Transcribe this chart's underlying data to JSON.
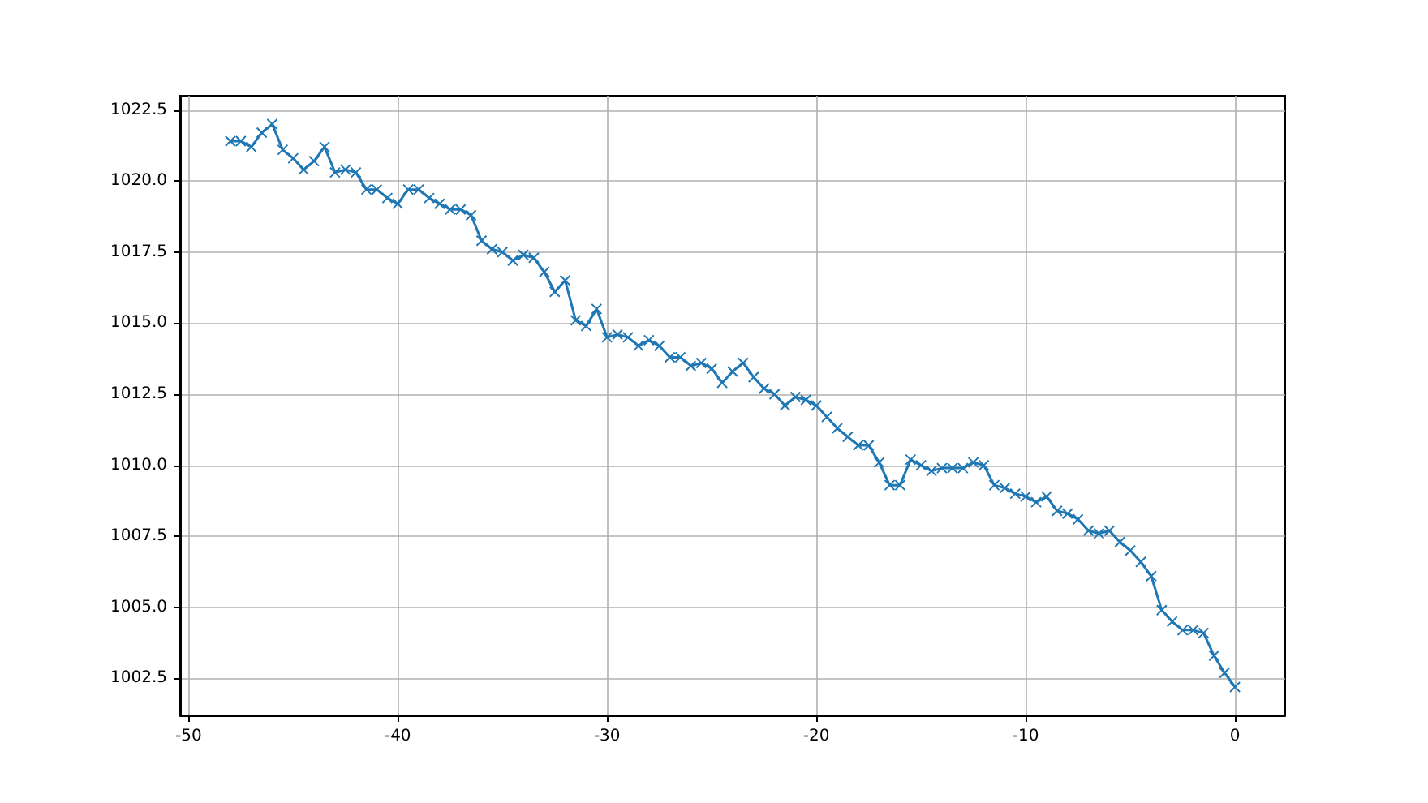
{
  "chart_data": {
    "type": "line",
    "color": "#1f77b4",
    "marker": "cross",
    "grid": true,
    "x": [
      -48,
      -47.5,
      -47,
      -46.5,
      -46,
      -45.5,
      -45,
      -44.5,
      -44,
      -43.5,
      -43,
      -42.5,
      -42,
      -41.5,
      -41,
      -40.5,
      -40,
      -39.5,
      -39,
      -38.5,
      -38,
      -37.5,
      -37,
      -36.5,
      -36,
      -35.5,
      -35,
      -34.5,
      -34,
      -33.5,
      -33,
      -32.5,
      -32,
      -31.5,
      -31,
      -30.5,
      -30,
      -29.5,
      -29,
      -28.5,
      -28,
      -27.5,
      -27,
      -26.5,
      -26,
      -25.5,
      -25,
      -24.5,
      -24,
      -23.5,
      -23,
      -22.5,
      -22,
      -21.5,
      -21,
      -20.5,
      -20,
      -19.5,
      -19,
      -18.5,
      -18,
      -17.5,
      -17,
      -16.5,
      -16,
      -15.5,
      -15,
      -14.5,
      -14,
      -13.5,
      -13,
      -12.5,
      -12,
      -11.5,
      -11,
      -10.5,
      -10,
      -9.5,
      -9,
      -8.5,
      -8,
      -7.5,
      -7,
      -6.5,
      -6,
      -5.5,
      -5,
      -4.5,
      -4,
      -3.5,
      -3,
      -2.5,
      -2,
      -1.5,
      -1,
      -0.5,
      0
    ],
    "values": [
      1021.4,
      1021.4,
      1021.2,
      1021.7,
      1022.0,
      1021.1,
      1020.8,
      1020.4,
      1020.7,
      1021.2,
      1020.3,
      1020.4,
      1020.3,
      1019.7,
      1019.7,
      1019.4,
      1019.2,
      1019.7,
      1019.7,
      1019.4,
      1019.2,
      1019.0,
      1019.0,
      1018.8,
      1017.9,
      1017.6,
      1017.5,
      1017.2,
      1017.4,
      1017.3,
      1016.8,
      1016.1,
      1016.5,
      1015.1,
      1014.9,
      1015.5,
      1014.5,
      1014.6,
      1014.5,
      1014.2,
      1014.4,
      1014.2,
      1013.8,
      1013.8,
      1013.5,
      1013.6,
      1013.4,
      1012.9,
      1013.3,
      1013.6,
      1013.1,
      1012.7,
      1012.5,
      1012.1,
      1012.4,
      1012.3,
      1012.1,
      1011.7,
      1011.3,
      1011.0,
      1010.7,
      1010.7,
      1010.1,
      1009.3,
      1009.3,
      1010.2,
      1010.0,
      1009.8,
      1009.9,
      1009.9,
      1009.9,
      1010.1,
      1010.0,
      1009.3,
      1009.2,
      1009.0,
      1008.9,
      1008.7,
      1008.9,
      1008.4,
      1008.3,
      1008.1,
      1007.7,
      1007.6,
      1007.7,
      1007.3,
      1007.0,
      1006.6,
      1006.1,
      1004.9,
      1004.5,
      1004.2,
      1004.2,
      1004.1,
      1003.3,
      1002.7,
      1002.2
    ],
    "xlim": [
      -50.4,
      2.4
    ],
    "xticks": [
      -50,
      -40,
      -30,
      -20,
      -10,
      0
    ],
    "ylim": [
      1001.2,
      1023.0
    ],
    "yticks": [
      {
        "value": 1002.5,
        "label": "1002.5"
      },
      {
        "value": 1005,
        "label": "1005.0"
      },
      {
        "value": 1007.5,
        "label": "1007.5"
      },
      {
        "value": 1010,
        "label": "1010.0"
      },
      {
        "value": 1012.5,
        "label": "1012.5"
      },
      {
        "value": 1015,
        "label": "1015.0"
      },
      {
        "value": 1017.5,
        "label": "1017.5"
      },
      {
        "value": 1020,
        "label": "1020.0"
      },
      {
        "value": 1022.5,
        "label": "1022.5"
      }
    ]
  }
}
